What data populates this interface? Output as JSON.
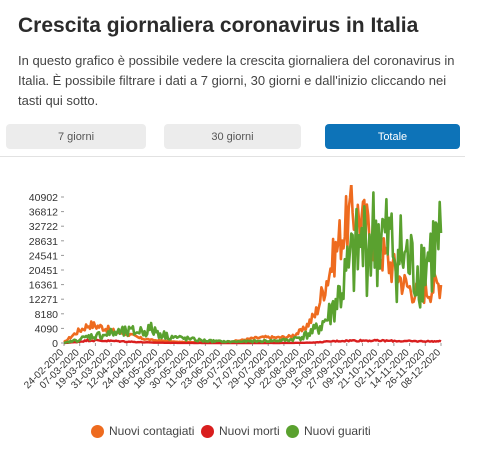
{
  "header": {
    "title": "Crescita giornaliera coronavirus in Italia",
    "description": "In questo grafico è possibile vedere la crescita giornaliera del coronavirus in Italia. È possibile filtrare i dati a 7 giorni, 30 giorni e dall'inizio cliccando nei tasti qui sotto."
  },
  "tabs": [
    {
      "label": "7 giorni",
      "active": false
    },
    {
      "label": "30 giorni",
      "active": false
    },
    {
      "label": "Totale",
      "active": true
    }
  ],
  "colors": {
    "contagiati": "#ee6b1f",
    "morti": "#d91e1e",
    "guariti": "#5aa12f",
    "active_tab": "#0d73b8"
  },
  "chart_data": {
    "type": "line",
    "title": "",
    "xlabel": "",
    "ylabel": "",
    "ylim": [
      0,
      40902
    ],
    "yticks": [
      0,
      4090,
      8180,
      12271,
      16361,
      20451,
      24541,
      28631,
      32722,
      36812,
      40902
    ],
    "xticks": [
      "24-02-2020",
      "07-03-2020",
      "19-03-2020",
      "31-03-2020",
      "12-04-2020",
      "24-04-2020",
      "06-05-2020",
      "18-05-2020",
      "30-05-2020",
      "11-06-2020",
      "23-06-2020",
      "05-07-2020",
      "17-07-2020",
      "29-07-2020",
      "10-08-2020",
      "22-08-2020",
      "03-09-2020",
      "15-09-2020",
      "27-09-2020",
      "09-10-2020",
      "21-10-2020",
      "02-11-2020",
      "14-11-2020",
      "26-11-2020",
      "08-12-2020"
    ],
    "legend_position": "bottom",
    "series": [
      {
        "name": "Nuovi contagiati",
        "color_key": "contagiati",
        "values": [
          200,
          3000,
          5200,
          4500,
          3200,
          2600,
          1400,
          800,
          600,
          300,
          220,
          200,
          260,
          350,
          700,
          1300,
          1600,
          1500,
          1800,
          3500,
          8000,
          19000,
          30000,
          37000,
          33000,
          27000,
          22000,
          17000,
          14000,
          15000,
          17000
        ]
      },
      {
        "name": "Nuovi morti",
        "color_key": "morti",
        "values": [
          0,
          250,
          800,
          650,
          550,
          400,
          250,
          120,
          70,
          35,
          20,
          12,
          10,
          8,
          8,
          10,
          12,
          15,
          25,
          60,
          150,
          400,
          600,
          680,
          700,
          650,
          600,
          520,
          500,
          480,
          460
        ]
      },
      {
        "name": "Nuovi guariti",
        "color_key": "guariti",
        "values": [
          0,
          800,
          1800,
          2300,
          2800,
          3000,
          3300,
          3800,
          2200,
          1500,
          1100,
          700,
          500,
          350,
          400,
          450,
          550,
          650,
          900,
          1800,
          3500,
          7000,
          14000,
          23000,
          28000,
          30000,
          27000,
          24000,
          20000,
          24000,
          28000
        ]
      }
    ]
  }
}
